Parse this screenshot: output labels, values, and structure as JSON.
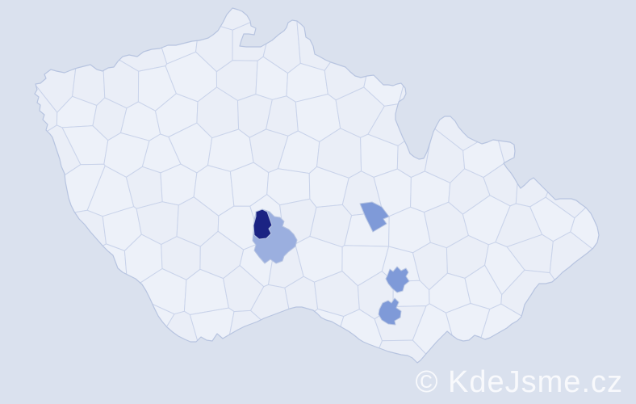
{
  "watermark": {
    "text": "© KdeJsme.cz"
  },
  "map": {
    "description": "Czech Republic district (okres) choropleth map",
    "colors": {
      "background": "#dae1ee",
      "land": "#edf1f9",
      "land_alt": "#eaeef7",
      "district_border": "#c9d3ea",
      "country_border": "#b7c4e0",
      "highlight_dark": "#1b2383",
      "highlight_medium": "#7f9ad8",
      "highlight_light": "#9bafdf",
      "watermark_color": "rgba(255,255,255,0.8)"
    },
    "highlighted_districts": [
      {
        "name": "district-highlight-1",
        "level": "dark"
      },
      {
        "name": "district-highlight-2",
        "level": "light"
      },
      {
        "name": "district-highlight-3",
        "level": "medium"
      },
      {
        "name": "district-highlight-4",
        "level": "medium"
      },
      {
        "name": "district-highlight-5",
        "level": "medium"
      }
    ]
  }
}
